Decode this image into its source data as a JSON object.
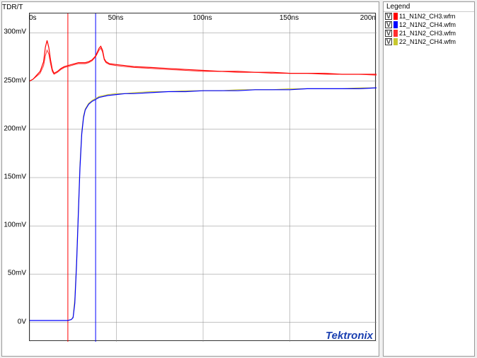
{
  "chart": {
    "title": "TDR/T",
    "type": "line",
    "xlabel": "",
    "ylabel": "",
    "background_color": "#ffffff",
    "grid_color": "#888888",
    "grid_on": true,
    "x": {
      "unit": "ns",
      "min": 0,
      "max": 200,
      "ticks": [
        0,
        50,
        100,
        150,
        200
      ],
      "tick_labels": [
        "0s",
        "50ns",
        "100ns",
        "150ns",
        "200n"
      ]
    },
    "y": {
      "unit": "mV",
      "min": -20,
      "max": 320,
      "ticks": [
        0,
        50,
        100,
        150,
        200,
        250,
        300
      ],
      "tick_labels": [
        "0V",
        "50mV",
        "100mV",
        "150mV",
        "200mV",
        "250mV",
        "300mV"
      ]
    },
    "cursors": [
      {
        "x": 22,
        "color": "#ff0000",
        "width": 1
      },
      {
        "x": 38,
        "color": "#0000ff",
        "width": 1
      }
    ],
    "series": [
      {
        "name": "11_N1N2_CH3.wfm",
        "color": "#ff0000",
        "width": 1.2,
        "points": [
          [
            0,
            250
          ],
          [
            2,
            252
          ],
          [
            4,
            256
          ],
          [
            6,
            260
          ],
          [
            8,
            270
          ],
          [
            9,
            285
          ],
          [
            10,
            292
          ],
          [
            11,
            285
          ],
          [
            12,
            272
          ],
          [
            13,
            262
          ],
          [
            14,
            258
          ],
          [
            16,
            260
          ],
          [
            18,
            263
          ],
          [
            20,
            265
          ],
          [
            22,
            266
          ],
          [
            24,
            267
          ],
          [
            26,
            268
          ],
          [
            28,
            269
          ],
          [
            30,
            269
          ],
          [
            32,
            269
          ],
          [
            34,
            270
          ],
          [
            36,
            272
          ],
          [
            38,
            276
          ],
          [
            40,
            284
          ],
          [
            41,
            286
          ],
          [
            42,
            282
          ],
          [
            43,
            273
          ],
          [
            44,
            270
          ],
          [
            46,
            268
          ],
          [
            50,
            267
          ],
          [
            55,
            266
          ],
          [
            60,
            265
          ],
          [
            70,
            264
          ],
          [
            80,
            263
          ],
          [
            90,
            262
          ],
          [
            100,
            261
          ],
          [
            110,
            260
          ],
          [
            120,
            260
          ],
          [
            130,
            259
          ],
          [
            140,
            259
          ],
          [
            150,
            258
          ],
          [
            160,
            258
          ],
          [
            170,
            258
          ],
          [
            180,
            257
          ],
          [
            190,
            257
          ],
          [
            200,
            257
          ]
        ]
      },
      {
        "name": "12_N1N2_CH4.wfm",
        "color": "#0000ff",
        "width": 1.2,
        "points": [
          [
            0,
            2
          ],
          [
            5,
            2
          ],
          [
            10,
            2
          ],
          [
            15,
            2
          ],
          [
            20,
            2
          ],
          [
            22,
            2
          ],
          [
            24,
            3
          ],
          [
            25,
            5
          ],
          [
            26,
            20
          ],
          [
            27,
            60
          ],
          [
            28,
            110
          ],
          [
            29,
            160
          ],
          [
            30,
            195
          ],
          [
            31,
            212
          ],
          [
            32,
            220
          ],
          [
            34,
            226
          ],
          [
            36,
            229
          ],
          [
            38,
            231
          ],
          [
            40,
            233
          ],
          [
            45,
            235
          ],
          [
            50,
            236
          ],
          [
            55,
            237
          ],
          [
            60,
            237
          ],
          [
            70,
            238
          ],
          [
            80,
            239
          ],
          [
            90,
            239
          ],
          [
            100,
            240
          ],
          [
            110,
            240
          ],
          [
            120,
            240
          ],
          [
            130,
            241
          ],
          [
            140,
            241
          ],
          [
            150,
            241
          ],
          [
            160,
            242
          ],
          [
            170,
            242
          ],
          [
            180,
            242
          ],
          [
            190,
            242
          ],
          [
            200,
            243
          ]
        ]
      },
      {
        "name": "21_N1N2_CH3.wfm",
        "color": "#ff3030",
        "width": 1.0,
        "points": [
          [
            0,
            250
          ],
          [
            2,
            252
          ],
          [
            4,
            255
          ],
          [
            6,
            258
          ],
          [
            8,
            266
          ],
          [
            9,
            276
          ],
          [
            10,
            282
          ],
          [
            11,
            278
          ],
          [
            12,
            268
          ],
          [
            13,
            260
          ],
          [
            14,
            257
          ],
          [
            16,
            259
          ],
          [
            18,
            262
          ],
          [
            20,
            264
          ],
          [
            22,
            265
          ],
          [
            24,
            266
          ],
          [
            26,
            267
          ],
          [
            28,
            268
          ],
          [
            30,
            268
          ],
          [
            32,
            268
          ],
          [
            34,
            269
          ],
          [
            36,
            271
          ],
          [
            38,
            275
          ],
          [
            40,
            282
          ],
          [
            41,
            284
          ],
          [
            42,
            280
          ],
          [
            43,
            272
          ],
          [
            44,
            269
          ],
          [
            46,
            267
          ],
          [
            50,
            266
          ],
          [
            55,
            265
          ],
          [
            60,
            264
          ],
          [
            70,
            263
          ],
          [
            80,
            262
          ],
          [
            90,
            261
          ],
          [
            100,
            260
          ],
          [
            110,
            260
          ],
          [
            120,
            259
          ],
          [
            130,
            259
          ],
          [
            140,
            258
          ],
          [
            150,
            258
          ],
          [
            160,
            258
          ],
          [
            170,
            257
          ],
          [
            180,
            257
          ],
          [
            190,
            257
          ],
          [
            200,
            256
          ]
        ]
      },
      {
        "name": "22_N1N2_CH4.wfm",
        "color": "#c8c830",
        "width": 1.0,
        "points": [
          [
            0,
            2
          ],
          [
            5,
            2
          ],
          [
            10,
            2
          ],
          [
            15,
            2
          ],
          [
            20,
            2
          ],
          [
            22,
            2
          ],
          [
            24,
            3
          ],
          [
            25,
            6
          ],
          [
            26,
            25
          ],
          [
            27,
            65
          ],
          [
            28,
            115
          ],
          [
            29,
            165
          ],
          [
            30,
            198
          ],
          [
            31,
            214
          ],
          [
            32,
            221
          ],
          [
            34,
            227
          ],
          [
            36,
            230
          ],
          [
            38,
            232
          ],
          [
            40,
            234
          ],
          [
            45,
            236
          ],
          [
            50,
            237
          ],
          [
            55,
            237
          ],
          [
            60,
            238
          ],
          [
            70,
            239
          ],
          [
            80,
            239
          ],
          [
            90,
            240
          ],
          [
            100,
            240
          ],
          [
            110,
            240
          ],
          [
            120,
            241
          ],
          [
            130,
            241
          ],
          [
            140,
            241
          ],
          [
            150,
            242
          ],
          [
            160,
            242
          ],
          [
            170,
            242
          ],
          [
            180,
            242
          ],
          [
            190,
            243
          ],
          [
            200,
            243
          ]
        ]
      }
    ],
    "brand": "Tektronix",
    "brand_color": "#1a3fb0"
  },
  "legend": {
    "title": "Legend",
    "items": [
      {
        "icon": "V",
        "color": "#ff0000",
        "label": "11_N1N2_CH3.wfm"
      },
      {
        "icon": "V",
        "color": "#0000ff",
        "label": "12_N1N2_CH4.wfm"
      },
      {
        "icon": "V",
        "color": "#ff3030",
        "label": "21_N1N2_CH3.wfm"
      },
      {
        "icon": "V",
        "color": "#c8c830",
        "label": "22_N1N2_CH4.wfm"
      }
    ]
  }
}
